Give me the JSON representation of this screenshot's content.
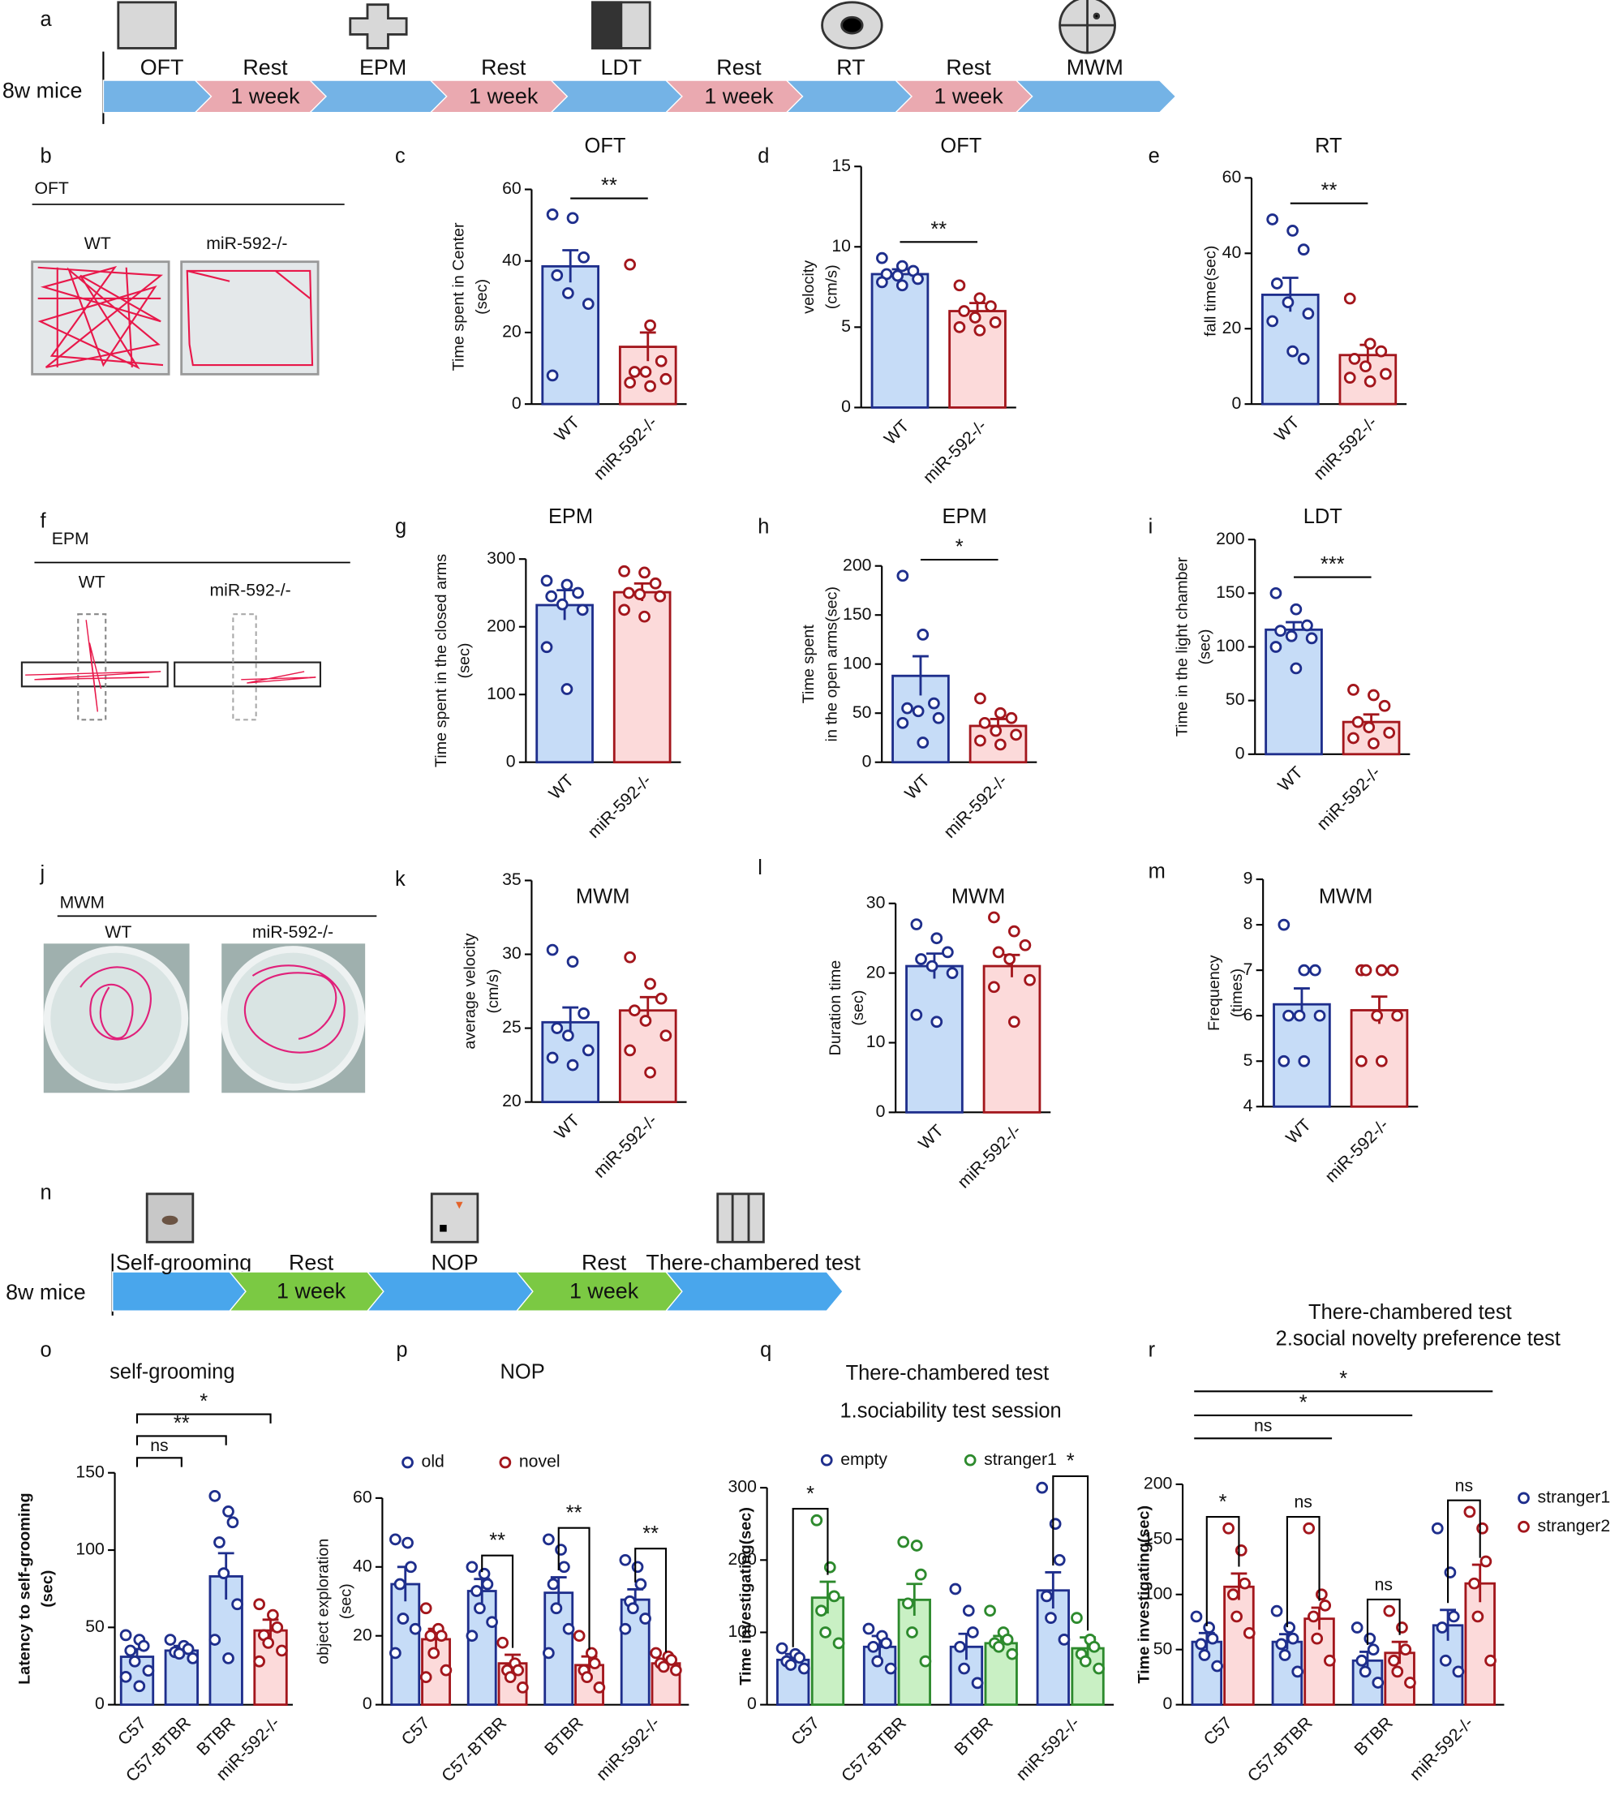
{
  "timelines": [
    {
      "panel": "a",
      "subject": "8w mice",
      "test_color": "#74b3e6",
      "rest_color": "#eaa9b0",
      "steps": [
        {
          "name": "OFT"
        },
        {
          "name": "Rest",
          "duration": "1 week"
        },
        {
          "name": "EPM"
        },
        {
          "name": "Rest",
          "duration": "1 week"
        },
        {
          "name": "LDT"
        },
        {
          "name": "Rest",
          "duration": "1 week"
        },
        {
          "name": "RT"
        },
        {
          "name": "Rest",
          "duration": "1 week"
        },
        {
          "name": "MWM"
        }
      ]
    },
    {
      "panel": "n",
      "subject": "8w mice",
      "test_color": "#49a6ec",
      "rest_color": "#7bc943",
      "steps": [
        {
          "name": "Self-grooming"
        },
        {
          "name": "Rest",
          "duration": "1 week"
        },
        {
          "name": "NOP"
        },
        {
          "name": "Rest",
          "duration": "1 week"
        },
        {
          "name": "There-chambered test"
        }
      ]
    }
  ],
  "photo_panels": [
    {
      "panel": "b",
      "test": "OFT",
      "groups": [
        "WT",
        "miR-592-/-"
      ]
    },
    {
      "panel": "f",
      "test": "EPM",
      "groups": [
        "WT",
        "miR-592-/-"
      ]
    },
    {
      "panel": "j",
      "test": "MWM",
      "groups": [
        "WT",
        "miR-592-/-"
      ]
    }
  ],
  "chart_data": [
    {
      "type": "bar",
      "panel": "c",
      "title": "OFT",
      "y_label": [
        "Time spent in Center",
        "(sec)"
      ],
      "categories": [
        "WT",
        "miR-592-/-"
      ],
      "values": [
        38.5,
        16
      ],
      "errors": [
        4.5,
        4
      ],
      "points": [
        [
          53,
          52,
          41,
          36,
          31,
          28,
          8
        ],
        [
          39,
          22,
          12,
          9,
          9,
          7,
          6,
          5
        ]
      ],
      "colors": [
        "#1e2e8c",
        "#a3161c"
      ],
      "fill_colors": [
        "#c6dcf7",
        "#fcdada"
      ],
      "ylim": [
        0,
        60
      ],
      "yticks": [
        0,
        20,
        40,
        60
      ],
      "significance": [
        "**"
      ]
    },
    {
      "type": "bar",
      "panel": "d",
      "title": "OFT",
      "y_label": [
        "velocity",
        "(cm/s)"
      ],
      "categories": [
        "WT",
        "miR-592-/-"
      ],
      "values": [
        8.3,
        6
      ],
      "errors": [
        0.3,
        0.5
      ],
      "points": [
        [
          9.3,
          8.8,
          8.5,
          8.3,
          8.2,
          8,
          7.8,
          7.6
        ],
        [
          7.6,
          6.8,
          6.3,
          6,
          5.6,
          5.3,
          5,
          4.8
        ]
      ],
      "colors": [
        "#1e2e8c",
        "#a3161c"
      ],
      "fill_colors": [
        "#c6dcf7",
        "#fcdada"
      ],
      "ylim": [
        0,
        15
      ],
      "yticks": [
        0,
        5,
        10,
        15
      ],
      "significance": [
        "**"
      ]
    },
    {
      "type": "bar",
      "panel": "e",
      "title": "RT",
      "y_label": [
        "fall time(sec)"
      ],
      "categories": [
        "WT",
        "miR-592-/-"
      ],
      "values": [
        29,
        13
      ],
      "errors": [
        4.5,
        2.7
      ],
      "points": [
        [
          49,
          46,
          41,
          32,
          27,
          24,
          22,
          14,
          12
        ],
        [
          28,
          16,
          14,
          12,
          10,
          8,
          7,
          6
        ]
      ],
      "colors": [
        "#1e2e8c",
        "#a3161c"
      ],
      "fill_colors": [
        "#c6dcf7",
        "#fcdada"
      ],
      "ylim": [
        0,
        60
      ],
      "yticks": [
        0,
        20,
        40,
        60
      ],
      "significance": [
        "**"
      ]
    },
    {
      "type": "bar",
      "panel": "g",
      "title": "EPM",
      "y_label": [
        "Time spent in the closed arms",
        "(sec)"
      ],
      "categories": [
        "WT",
        "miR-592-/-"
      ],
      "values": [
        232,
        251
      ],
      "errors": [
        22,
        13
      ],
      "points": [
        [
          268,
          262,
          250,
          245,
          233,
          225,
          170,
          108
        ],
        [
          282,
          280,
          264,
          250,
          248,
          245,
          225,
          215
        ]
      ],
      "colors": [
        "#1e2e8c",
        "#a3161c"
      ],
      "fill_colors": [
        "#c6dcf7",
        "#fcdada"
      ],
      "ylim": [
        0,
        300
      ],
      "yticks": [
        0,
        100,
        200,
        300
      ]
    },
    {
      "type": "bar",
      "panel": "h",
      "title": "EPM",
      "y_label": [
        "Time spent",
        "in the open arms(sec)"
      ],
      "categories": [
        "WT",
        "miR-592-/-"
      ],
      "values": [
        88,
        37
      ],
      "errors": [
        20,
        7
      ],
      "points": [
        [
          190,
          130,
          60,
          55,
          52,
          45,
          40,
          20
        ],
        [
          65,
          50,
          45,
          40,
          32,
          28,
          22,
          18
        ]
      ],
      "colors": [
        "#1e2e8c",
        "#a3161c"
      ],
      "fill_colors": [
        "#c6dcf7",
        "#fcdada"
      ],
      "ylim": [
        0,
        200
      ],
      "yticks": [
        0,
        50,
        100,
        150,
        200
      ],
      "significance": [
        "*"
      ]
    },
    {
      "type": "bar",
      "panel": "i",
      "title": "LDT",
      "y_label": [
        "Time in the light chamber",
        "(sec)"
      ],
      "categories": [
        "WT",
        "miR-592-/-"
      ],
      "values": [
        116,
        30
      ],
      "errors": [
        7,
        7
      ],
      "points": [
        [
          150,
          135,
          120,
          115,
          110,
          108,
          100,
          80
        ],
        [
          60,
          55,
          45,
          30,
          25,
          20,
          15,
          10
        ]
      ],
      "colors": [
        "#1e2e8c",
        "#a3161c"
      ],
      "fill_colors": [
        "#c6dcf7",
        "#fcdada"
      ],
      "ylim": [
        0,
        200
      ],
      "yticks": [
        0,
        50,
        100,
        150,
        200
      ],
      "significance": [
        "***"
      ]
    },
    {
      "type": "bar",
      "panel": "k",
      "title": "MWM",
      "y_label": [
        "average velocity",
        "(cm/s)"
      ],
      "categories": [
        "WT",
        "miR-592-/-"
      ],
      "values": [
        25.4,
        26.2
      ],
      "errors": [
        1,
        0.9
      ],
      "points": [
        [
          30.3,
          29.5,
          26,
          25,
          24.5,
          23.5,
          23,
          22.5
        ],
        [
          29.8,
          28,
          27,
          26.2,
          25.5,
          24.5,
          23.5,
          22
        ]
      ],
      "colors": [
        "#1e2e8c",
        "#a3161c"
      ],
      "fill_colors": [
        "#c6dcf7",
        "#fcdada"
      ],
      "ylim": [
        20,
        35
      ],
      "yticks": [
        20,
        25,
        30,
        35
      ]
    },
    {
      "type": "bar",
      "panel": "l",
      "title": "MWM",
      "y_label": [
        "Duration time",
        "(sec)"
      ],
      "categories": [
        "WT",
        "miR-592-/-"
      ],
      "values": [
        21,
        21
      ],
      "errors": [
        1.8,
        1.6
      ],
      "points": [
        [
          27,
          25,
          23,
          22,
          21,
          20,
          14,
          13
        ],
        [
          28,
          26,
          24,
          23,
          22,
          19,
          18,
          13
        ]
      ],
      "colors": [
        "#1e2e8c",
        "#a3161c"
      ],
      "fill_colors": [
        "#c6dcf7",
        "#fcdada"
      ],
      "ylim": [
        0,
        30
      ],
      "yticks": [
        0,
        10,
        20,
        30
      ]
    },
    {
      "type": "bar",
      "panel": "m",
      "title": "MWM",
      "y_label": [
        "Frequency",
        "(times)"
      ],
      "categories": [
        "WT",
        "miR-592-/-"
      ],
      "values": [
        6.25,
        6.12
      ],
      "errors": [
        0.35,
        0.3
      ],
      "points": [
        [
          8,
          7,
          7,
          6,
          6,
          6,
          5,
          5
        ],
        [
          7,
          7,
          7,
          7,
          6,
          6,
          5,
          5
        ]
      ],
      "colors": [
        "#1e2e8c",
        "#a3161c"
      ],
      "fill_colors": [
        "#c6dcf7",
        "#fcdada"
      ],
      "ylim": [
        4,
        9
      ],
      "yticks": [
        4,
        5,
        6,
        7,
        8,
        9
      ]
    },
    {
      "type": "bar",
      "panel": "o",
      "title": "self-grooming",
      "y_label": [
        "Latency to self-grooming",
        "(sec)"
      ],
      "categories": [
        "C57",
        "C57-BTBR",
        "BTBR",
        "miR-592-/-"
      ],
      "values": [
        31,
        35,
        83,
        48
      ],
      "errors": [
        5,
        3,
        15,
        7
      ],
      "points": [
        [
          45,
          42,
          38,
          35,
          28,
          22,
          18,
          12
        ],
        [
          42,
          38,
          36,
          34,
          33,
          30
        ],
        [
          135,
          125,
          118,
          105,
          85,
          65,
          42,
          30
        ],
        [
          65,
          58,
          50,
          45,
          40,
          35,
          28
        ]
      ],
      "colors": [
        "#1e2e8c",
        "#1e2e8c",
        "#1e2e8c",
        "#a3161c"
      ],
      "fill_colors": [
        "#c6dcf7",
        "#c6dcf7",
        "#c6dcf7",
        "#fcdada"
      ],
      "ylim": [
        0,
        150
      ],
      "yticks": [
        0,
        50,
        100,
        150
      ],
      "significance": [
        "ns",
        "**",
        "*"
      ]
    },
    {
      "type": "grouped_bar",
      "panel": "p",
      "title": "NOP",
      "y_label": [
        "object exploration",
        "(sec)"
      ],
      "categories": [
        "C57",
        "C57-BTBR",
        "BTBR",
        "miR-592-/-"
      ],
      "series": [
        {
          "name": "old",
          "color": "#1e2e8c",
          "fill": "#c6dcf7",
          "values": [
            35,
            33,
            32.5,
            30.5
          ],
          "errors": [
            5,
            3.5,
            4.5,
            3
          ],
          "points": [
            [
              48,
              47,
              40,
              35,
              25,
              22,
              15
            ],
            [
              40,
              38,
              35,
              33,
              28,
              24,
              20
            ],
            [
              48,
              45,
              40,
              35,
              28,
              22,
              15
            ],
            [
              42,
              40,
              35,
              30,
              28,
              25,
              22
            ]
          ]
        },
        {
          "name": "novel",
          "color": "#a3161c",
          "fill": "#fcdada",
          "values": [
            19,
            12,
            11.5,
            12
          ],
          "errors": [
            3,
            2.5,
            2.5,
            1.2
          ],
          "points": [
            [
              28,
              22,
              20,
              20,
              15,
              10,
              8
            ],
            [
              18,
              12,
              10,
              10,
              8,
              5
            ],
            [
              20,
              15,
              12,
              10,
              8,
              5
            ],
            [
              15,
              14,
              13,
              12,
              11,
              10
            ]
          ]
        }
      ],
      "ylim": [
        0,
        60
      ],
      "yticks": [
        0,
        20,
        40,
        60
      ],
      "pair_significance": [
        null,
        "**",
        "**",
        "**"
      ]
    },
    {
      "type": "grouped_bar",
      "panel": "q",
      "title": "There-chambered test",
      "subtitle": "1.sociability test session",
      "y_label": [
        "Time investigating(sec)"
      ],
      "categories": [
        "C57",
        "C57-BTBR",
        "BTBR",
        "miR-592-/-"
      ],
      "series": [
        {
          "name": "empty",
          "color": "#1e2e8c",
          "fill": "#c6dcf7",
          "values": [
            62,
            80,
            80,
            158
          ],
          "errors": [
            8,
            15,
            18,
            25
          ],
          "points": [
            [
              78,
              70,
              65,
              60,
              55,
              50
            ],
            [
              105,
              95,
              85,
              80,
              60,
              50
            ],
            [
              160,
              130,
              100,
              80,
              50,
              30
            ],
            [
              300,
              250,
              200,
              150,
              120,
              90
            ]
          ]
        },
        {
          "name": "stranger1",
          "color": "#2d8a2d",
          "fill": "#c9f0c4",
          "values": [
            148,
            145,
            85,
            78
          ],
          "errors": [
            22,
            22,
            10,
            15
          ],
          "points": [
            [
              255,
              190,
              150,
              130,
              100,
              85
            ],
            [
              225,
              220,
              180,
              140,
              100,
              60
            ],
            [
              130,
              100,
              90,
              85,
              80,
              70
            ],
            [
              120,
              90,
              80,
              70,
              60,
              50
            ]
          ]
        }
      ],
      "ylim": [
        0,
        300
      ],
      "yticks": [
        0,
        100,
        200,
        300
      ],
      "pair_significance": [
        "*",
        null,
        null,
        "*"
      ]
    },
    {
      "type": "grouped_bar",
      "panel": "r",
      "title": "There-chambered test",
      "subtitle": "2.social novelty preference test",
      "y_label": [
        "Time investigating(sec)"
      ],
      "categories": [
        "C57",
        "C57-BTBR",
        "BTBR",
        "miR-592-/-"
      ],
      "series": [
        {
          "name": "stranger1",
          "color": "#1e2e8c",
          "fill": "#c6dcf7",
          "values": [
            57,
            57,
            40,
            72
          ],
          "errors": [
            8,
            7,
            8,
            14
          ],
          "points": [
            [
              80,
              70,
              60,
              55,
              45,
              35
            ],
            [
              85,
              70,
              60,
              55,
              45,
              30
            ],
            [
              70,
              60,
              50,
              40,
              30,
              20
            ],
            [
              160,
              120,
              80,
              70,
              40,
              30
            ]
          ]
        },
        {
          "name": "stranger2",
          "color": "#a3161c",
          "fill": "#fcdada",
          "values": [
            107,
            78,
            47,
            110
          ],
          "errors": [
            12,
            10,
            10,
            17
          ],
          "points": [
            [
              160,
              140,
              110,
              100,
              80,
              65
            ],
            [
              160,
              100,
              90,
              80,
              60,
              40
            ],
            [
              85,
              70,
              50,
              40,
              30,
              20
            ],
            [
              175,
              160,
              130,
              110,
              80,
              40
            ]
          ]
        }
      ],
      "ylim": [
        0,
        200
      ],
      "yticks": [
        0,
        50,
        100,
        150,
        200
      ],
      "significance": [
        "ns",
        "*",
        "*"
      ],
      "pair_significance": [
        "*",
        "ns",
        "ns",
        "ns"
      ]
    }
  ]
}
